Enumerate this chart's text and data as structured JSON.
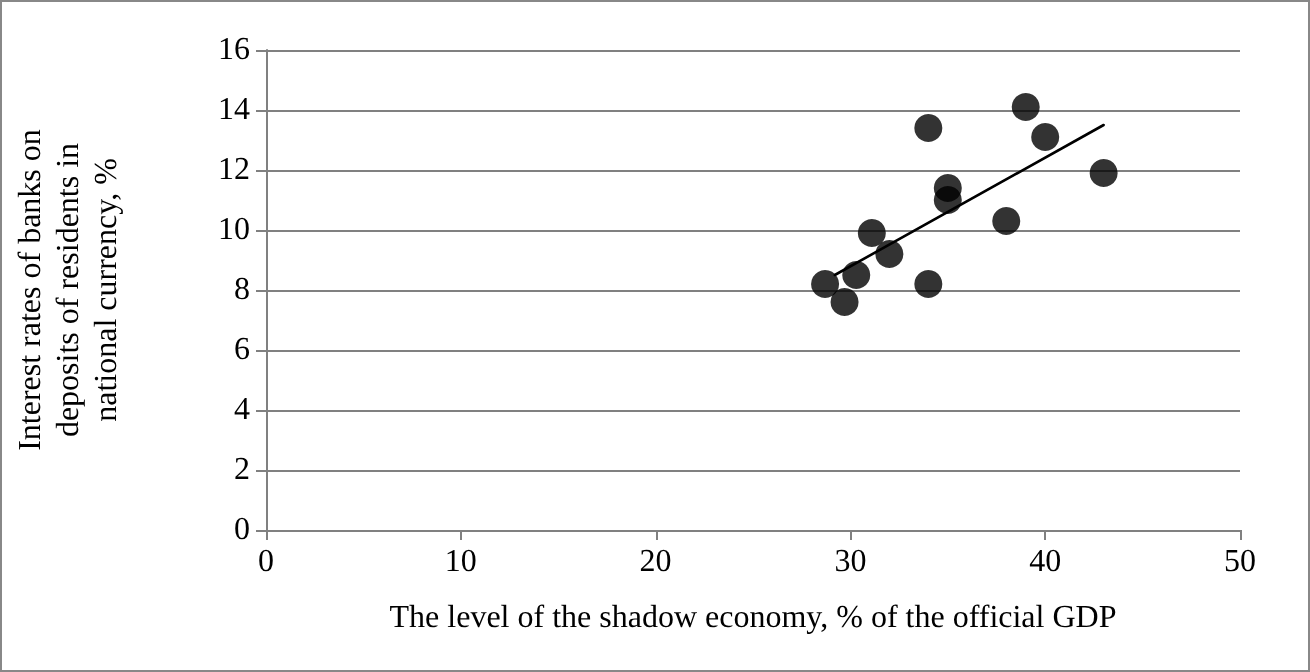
{
  "chart_data": {
    "type": "scatter",
    "xlabel": "The level of the shadow economy, % of the official GDP",
    "ylabel": "Interest rates of banks on deposits of residents in national currency, %",
    "series": [
      {
        "color": "#000000",
        "marker": "circle",
        "x": [
          28.7,
          29.7,
          30.3,
          31.1,
          32.0,
          34.0,
          34.0,
          35.0,
          35.0,
          38.0,
          39.0,
          40.0,
          43.0
        ],
        "values": [
          8.2,
          7.6,
          8.5,
          9.9,
          9.2,
          13.4,
          8.2,
          11.4,
          11.0,
          10.3,
          14.1,
          13.1,
          11.9
        ]
      },
      {
        "type": "line",
        "color": "#000000",
        "marker": "none",
        "x": [
          29.2,
          43.0
        ],
        "values": [
          8.5,
          13.5
        ]
      }
    ],
    "xlim": [
      0,
      50
    ],
    "xticks": [
      0,
      10,
      20,
      30,
      40,
      50
    ],
    "ylim": [
      0,
      16
    ],
    "yticks": [
      0,
      2,
      4,
      6,
      8,
      10,
      12,
      14,
      16
    ],
    "grid": "y"
  }
}
